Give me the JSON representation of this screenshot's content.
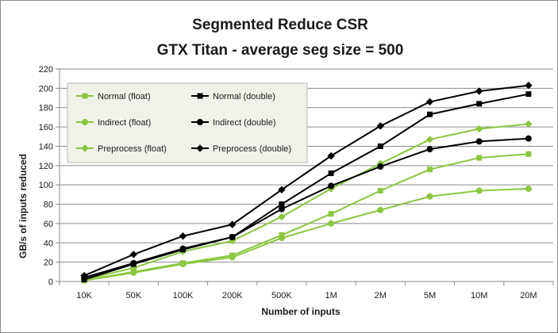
{
  "chart_data": {
    "type": "line",
    "title": "Segmented Reduce CSR",
    "subtitle": "GTX Titan - average seg size = 500",
    "xlabel": "Number of inputs",
    "ylabel": "GB/s of inputs reduced",
    "categories": [
      "10K",
      "50K",
      "100K",
      "200K",
      "500K",
      "1M",
      "2M",
      "5M",
      "10M",
      "20M"
    ],
    "ylim": [
      0,
      220
    ],
    "yticks": [
      0,
      20,
      40,
      60,
      80,
      100,
      120,
      140,
      160,
      180,
      200,
      220
    ],
    "grid": true,
    "legend_placement": "top-left",
    "series": [
      {
        "name": "Normal (float)",
        "color": "#8cc63f",
        "marker": "square",
        "values": [
          1,
          10,
          19,
          27,
          48,
          70,
          94,
          116,
          128,
          132
        ]
      },
      {
        "name": "Normal (double)",
        "color": "#000000",
        "marker": "square",
        "values": [
          2,
          18,
          33,
          46,
          80,
          112,
          140,
          173,
          184,
          194
        ]
      },
      {
        "name": "Indirect (float)",
        "color": "#8cc63f",
        "marker": "circle",
        "values": [
          1,
          9,
          18,
          25,
          45,
          60,
          74,
          88,
          94,
          96
        ]
      },
      {
        "name": "Indirect (double)",
        "color": "#000000",
        "marker": "circle",
        "values": [
          4,
          19,
          34,
          46,
          75,
          99,
          119,
          137,
          145,
          148
        ]
      },
      {
        "name": "Preprocess (float)",
        "color": "#8cc63f",
        "marker": "diamond",
        "values": [
          2,
          14,
          31,
          42,
          67,
          96,
          122,
          147,
          158,
          163
        ]
      },
      {
        "name": "Preprocess (double)",
        "color": "#000000",
        "marker": "diamond",
        "values": [
          6,
          28,
          47,
          59,
          95,
          130,
          161,
          186,
          197,
          203
        ]
      }
    ]
  }
}
